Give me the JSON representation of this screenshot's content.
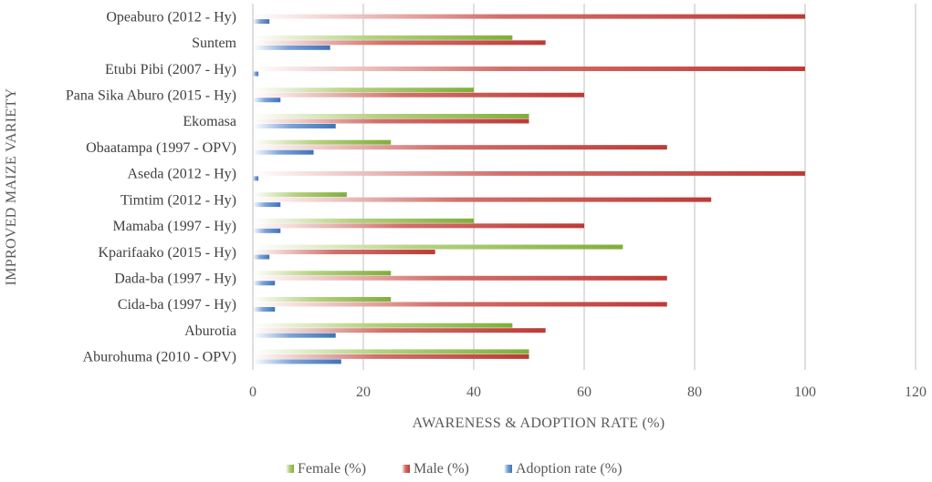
{
  "chart_data": {
    "type": "bar",
    "orientation": "horizontal",
    "title": "",
    "xlabel": "AWARENESS & ADOPTION RATE (%)",
    "ylabel": "IMPROVED MAIZE VARIETY",
    "xlim": [
      0,
      120
    ],
    "xticks": [
      0,
      20,
      40,
      60,
      80,
      100,
      120
    ],
    "grid": "vertical",
    "legend_position": "bottom",
    "categories": [
      "Opeaburo (2012 - Hy)",
      "Suntem",
      "Etubi Pibi (2007 - Hy)",
      "Pana Sika Aburo (2015 - Hy)",
      "Ekomasa",
      "Obaatampa (1997 - OPV)",
      "Aseda (2012 - Hy)",
      "Timtim (2012 - Hy)",
      "Mamaba (1997 - Hy)",
      "Kparifaako (2015 - Hy)",
      "Dada-ba (1997 - Hy)",
      "Cida-ba (1997 - Hy)",
      "Aburotia",
      "Aburohuma (2010 - OPV)"
    ],
    "series": [
      {
        "name": "Female (%)",
        "color": "#8DB648",
        "values": [
          0,
          47,
          0,
          40,
          50,
          25,
          0,
          17,
          40,
          67,
          25,
          25,
          47,
          50
        ]
      },
      {
        "name": "Male (%)",
        "color": "#C0403C",
        "values": [
          100,
          53,
          100,
          60,
          50,
          75,
          100,
          83,
          60,
          33,
          75,
          75,
          53,
          50
        ]
      },
      {
        "name": "Adoption rate (%)",
        "color": "#4A7EC2",
        "values": [
          3,
          14,
          1,
          5,
          15,
          11,
          1,
          5,
          5,
          3,
          4,
          4,
          15,
          16
        ]
      }
    ]
  }
}
